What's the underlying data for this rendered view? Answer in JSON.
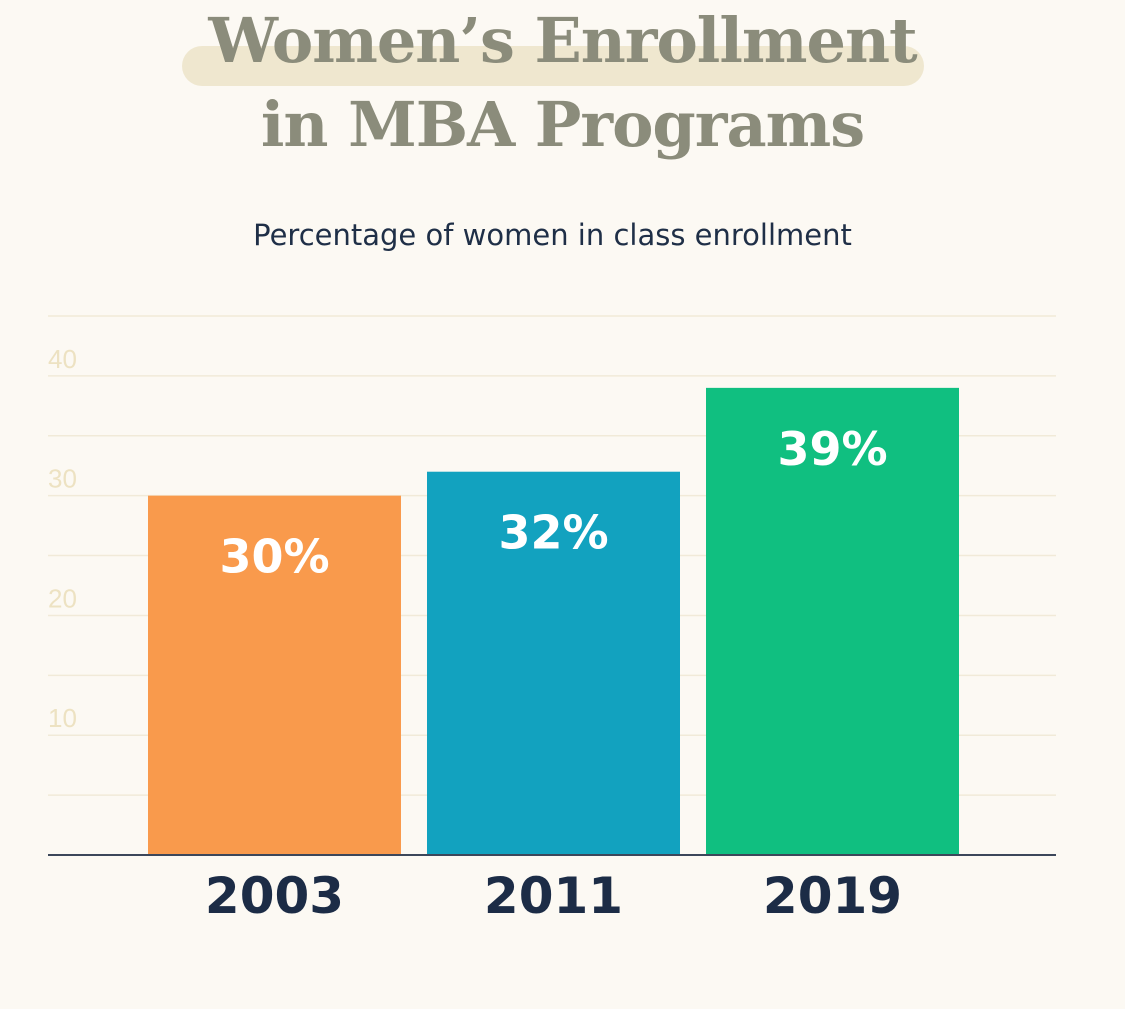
{
  "header": {
    "title_line1": "Women’s Enrollment",
    "title_line2": "in MBA Programs",
    "subtitle": "Percentage of women in class enrollment"
  },
  "chart_data": {
    "type": "bar",
    "title": "Women’s Enrollment in MBA Programs",
    "subtitle": "Percentage of women in class enrollment",
    "categories": [
      "2003",
      "2011",
      "2019"
    ],
    "values": [
      30,
      32,
      39
    ],
    "value_labels": [
      "30%",
      "32%",
      "39%"
    ],
    "colors": [
      "#f99a4c",
      "#12a2bf",
      "#10bf80"
    ],
    "yticks": [
      "10",
      "20",
      "30",
      "40"
    ],
    "ylim": [
      0,
      45
    ],
    "grid": true,
    "grid_step": 5,
    "xlabel": "",
    "ylabel": ""
  }
}
